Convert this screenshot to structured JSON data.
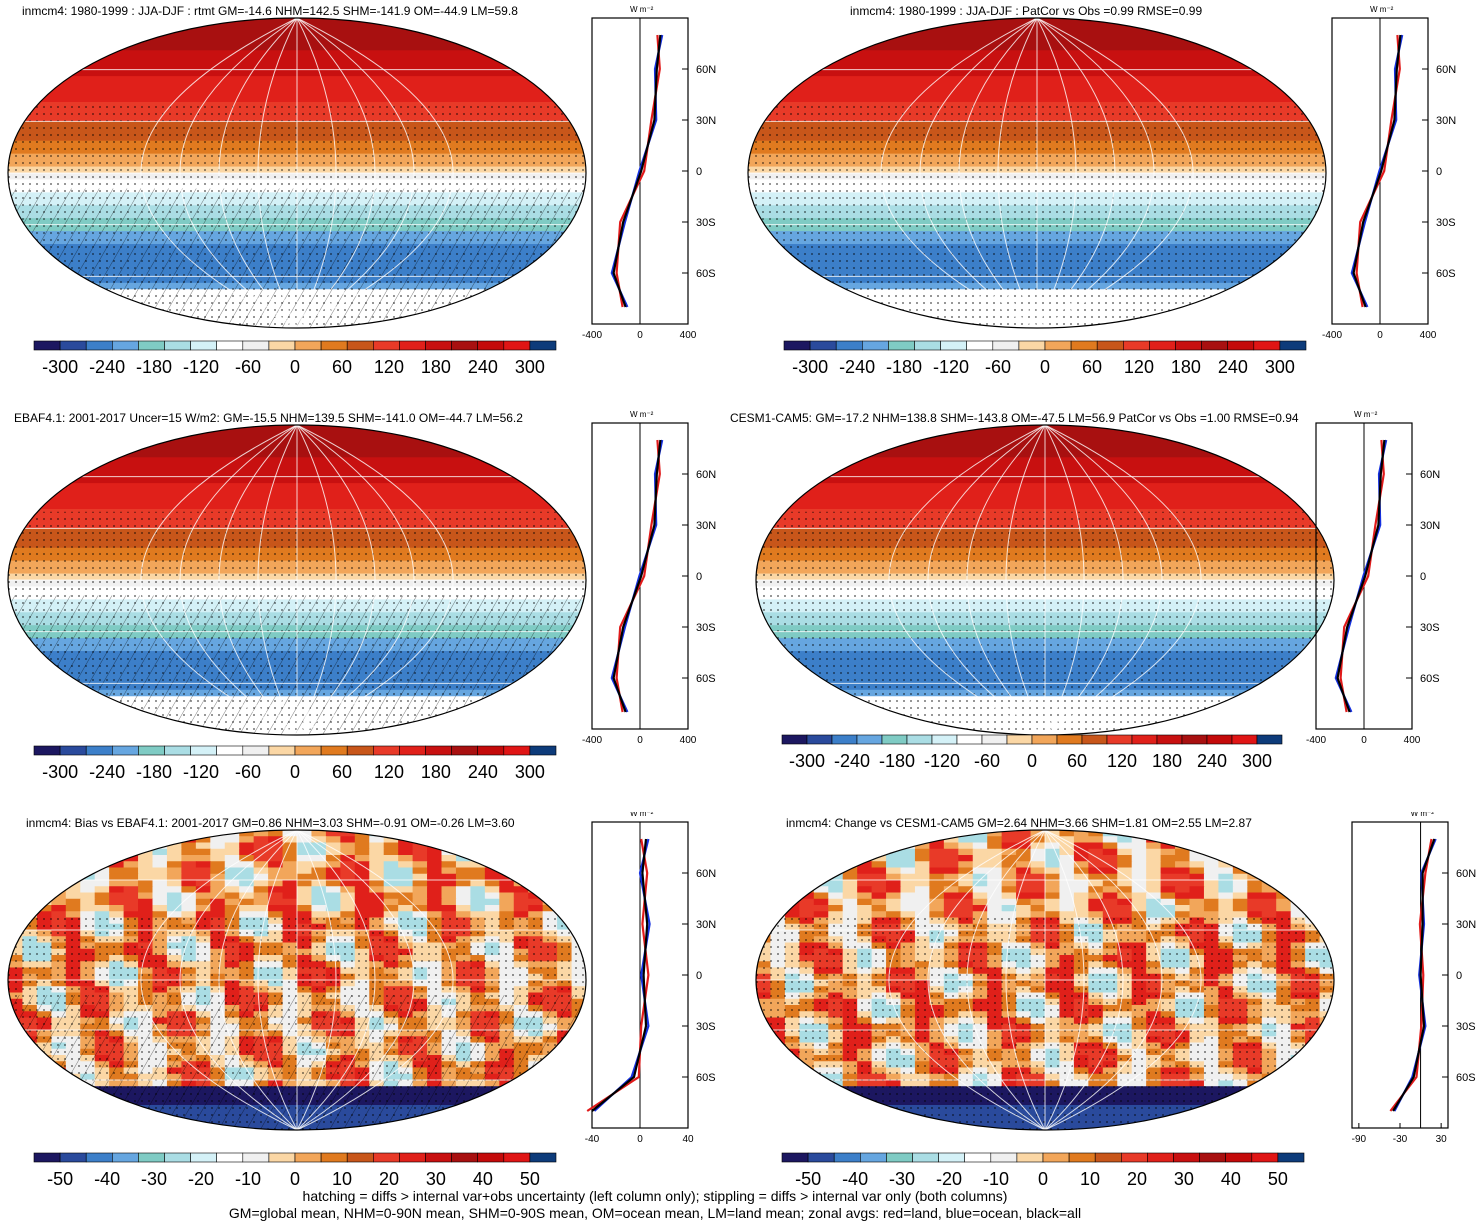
{
  "colors": {
    "scale": [
      "#1c1760",
      "#2a4a9c",
      "#3c7fc9",
      "#66a6e0",
      "#7fcbc4",
      "#aadde4",
      "#d4f1f7",
      "#ffffff",
      "#f0f0f0",
      "#fbd7a5",
      "#f2a65a",
      "#e07a1f",
      "#c8561a",
      "#e83a28",
      "#e0201a",
      "#c81010",
      "#a81010",
      "#c40a0a",
      "#e01515",
      "#0d3b7a"
    ],
    "land_line": "#e01a1a",
    "ocean_line": "#1430e0",
    "all_line": "#000000"
  },
  "panels": [
    {
      "id": "p1",
      "title": "inmcm4: 1980-1999 : JJA-DJF : rtmt GM=-14.6 NHM=142.5 SHM=-141.9 OM=-44.9 LM=59.8",
      "type": "mean",
      "hatch": true
    },
    {
      "id": "p2",
      "title": "inmcm4: 1980-1999 : JJA-DJF : PatCor vs Obs =0.99 RMSE=0.99",
      "type": "mean",
      "hatch": false
    },
    {
      "id": "p3",
      "title": "EBAF4.1: 2001-2017 Uncer=15 W/m2: GM=-15.5 NHM=139.5 SHM=-141.0 OM=-44.7 LM=56.2",
      "type": "mean",
      "hatch": true
    },
    {
      "id": "p4",
      "title": "CESM1-CAM5: GM=-17.2 NHM=138.8 SHM=-143.8 OM=-47.5 LM=56.9 PatCor vs Obs =1.00 RMSE=0.94",
      "type": "mean",
      "hatch": false
    },
    {
      "id": "p5",
      "title": "inmcm4: Bias vs EBAF4.1: 2001-2017 GM=0.86 NHM=3.03 SHM=-0.91 OM=-0.26 LM=3.60",
      "type": "diff",
      "hatch": true
    },
    {
      "id": "p6",
      "title": "inmcm4: Change vs CESM1-CAM5 GM=2.64 NHM=3.66 SHM=1.81 OM=2.55 LM=2.87",
      "type": "diff",
      "hatch": false
    }
  ],
  "colorbars": {
    "mean_labels": [
      "-300",
      "-240",
      "-180",
      "-120",
      "-60",
      "0",
      "60",
      "120",
      "180",
      "240",
      "300"
    ],
    "diff_labels": [
      "-50",
      "-40",
      "-30",
      "-20",
      "-10",
      "0",
      "10",
      "20",
      "30",
      "40",
      "50"
    ]
  },
  "zonal": {
    "unit_label": "W m⁻²",
    "lat_labels": [
      "60N",
      "30N",
      "0",
      "30S",
      "60S"
    ],
    "mean_x_labels": [
      "-400",
      "0",
      "400"
    ],
    "diff_x_labels_left": [
      "-40",
      "0",
      "40"
    ],
    "diff_x_labels_right": [
      "-90",
      "-30",
      "30"
    ]
  },
  "footer": {
    "line1": "hatching = diffs > internal var+obs uncertainty (left column only); stippling = diffs > internal var only (both columns)",
    "line2": "GM=global mean, NHM=0-90N mean, SHM=0-90S mean, OM=ocean mean, LM=land mean; zonal avgs: red=land, blue=ocean, black=all"
  },
  "chart_data": [
    {
      "type": "heatmap",
      "title": "inmcm4: 1980-1999 : JJA-DJF : rtmt GM=-14.6 NHM=142.5 SHM=-141.9 OM=-44.9 LM=59.8",
      "colorbar": [
        -300,
        300
      ],
      "zonal_mean": {
        "lat": [
          80,
          60,
          30,
          0,
          -30,
          -60,
          -80
        ],
        "all": [
          170,
          140,
          120,
          10,
          -140,
          -220,
          -120
        ],
        "x_range": [
          -400,
          400
        ]
      }
    },
    {
      "type": "heatmap",
      "title": "inmcm4: 1980-1999 : JJA-DJF : PatCor vs Obs =0.99 RMSE=0.99",
      "colorbar": [
        -300,
        300
      ],
      "zonal_mean": {
        "lat": [
          80,
          60,
          30,
          0,
          -30,
          -60,
          -80
        ],
        "all": [
          170,
          140,
          120,
          10,
          -140,
          -220,
          -120
        ],
        "x_range": [
          -400,
          400
        ]
      }
    },
    {
      "type": "heatmap",
      "title": "EBAF4.1: 2001-2017 Uncer=15 W/m2: GM=-15.5 NHM=139.5 SHM=-141.0 OM=-44.7 LM=56.2",
      "colorbar": [
        -300,
        300
      ],
      "zonal_mean": {
        "lat": [
          80,
          60,
          30,
          0,
          -30,
          -60,
          -80
        ],
        "all": [
          170,
          140,
          120,
          10,
          -140,
          -220,
          -120
        ],
        "x_range": [
          -400,
          400
        ]
      }
    },
    {
      "type": "heatmap",
      "title": "CESM1-CAM5: GM=-17.2 NHM=138.8 SHM=-143.8 OM=-47.5 LM=56.9 PatCor vs Obs =1.00 RMSE=0.94",
      "colorbar": [
        -300,
        300
      ],
      "zonal_mean": {
        "lat": [
          80,
          60,
          30,
          0,
          -30,
          -60,
          -80
        ],
        "all": [
          170,
          140,
          120,
          10,
          -140,
          -220,
          -120
        ],
        "x_range": [
          -400,
          400
        ]
      }
    },
    {
      "type": "heatmap",
      "title": "inmcm4: Bias vs EBAF4.1: 2001-2017 GM=0.86 NHM=3.03 SHM=-0.91 OM=-0.26 LM=3.60",
      "colorbar": [
        -50,
        50
      ],
      "zonal_mean": {
        "lat": [
          80,
          60,
          30,
          0,
          -30,
          -60,
          -80
        ],
        "all": [
          5,
          2,
          6,
          3,
          5,
          -5,
          -40
        ],
        "x_range": [
          -40,
          40
        ]
      }
    },
    {
      "type": "heatmap",
      "title": "inmcm4: Change vs CESM1-CAM5 GM=2.64 NHM=3.66 SHM=1.81 OM=2.55 LM=2.87",
      "colorbar": [
        -50,
        50
      ],
      "zonal_mean": {
        "lat": [
          80,
          60,
          30,
          0,
          -30,
          -60,
          -80
        ],
        "all": [
          20,
          3,
          3,
          0,
          5,
          -10,
          -40
        ],
        "x_range": [
          -100,
          40
        ]
      }
    }
  ]
}
